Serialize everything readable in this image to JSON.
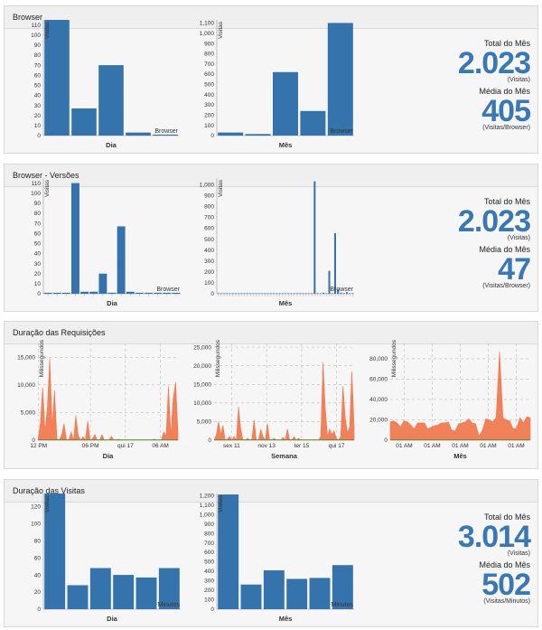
{
  "colors": {
    "bar": "#3573ad",
    "area": "#f07a50",
    "green": "#3a9a3a"
  },
  "panels": [
    {
      "title": "Browser",
      "stats": {
        "total_label": "Total do Mês",
        "total_value": "2.023",
        "total_unit": "(Visitas)",
        "avg_label": "Média do Mês",
        "avg_value": "405",
        "avg_unit": "(Visitas/Browser)"
      }
    },
    {
      "title": "Browser - Versões",
      "stats": {
        "total_label": "Total do Mês",
        "total_value": "2.023",
        "total_unit": "(Visitas)",
        "avg_label": "Média do Mês",
        "avg_value": "47",
        "avg_unit": "(Visitas/Browser)"
      }
    },
    {
      "title": "Duração das Requisições"
    },
    {
      "title": "Duração das Visitas",
      "stats": {
        "total_label": "Total do Mês",
        "total_value": "3.014",
        "total_unit": "(Visitas)",
        "avg_label": "Média do Mês",
        "avg_value": "502",
        "avg_unit": "(Visitas/Minutos)"
      }
    }
  ],
  "chart_data": [
    {
      "id": "browser-dia",
      "type": "bar",
      "ylabel": "Visitas",
      "xlabel": "Dia",
      "series_label": "Browser",
      "ylim": [
        0,
        115
      ],
      "yticks": [
        0,
        10,
        20,
        30,
        40,
        50,
        60,
        70,
        80,
        90,
        100,
        110
      ],
      "values": [
        115,
        27,
        70,
        3,
        1
      ]
    },
    {
      "id": "browser-mes",
      "type": "bar",
      "ylabel": "Visitas",
      "xlabel": "Mês",
      "series_label": "Browser",
      "ylim": [
        0,
        1130
      ],
      "yticks": [
        0,
        100,
        200,
        300,
        400,
        500,
        600,
        700,
        800,
        900,
        1000,
        1100
      ],
      "ytick_labels": [
        "0",
        "100",
        "200",
        "300",
        "400",
        "500",
        "600",
        "700",
        "800",
        "900",
        "1,000",
        "1,100"
      ],
      "values": [
        30,
        15,
        620,
        240,
        1100
      ]
    },
    {
      "id": "versoes-dia",
      "type": "bar",
      "ylabel": "Visitas",
      "xlabel": "Dia",
      "series_label": "Browser",
      "ylim": [
        0,
        115
      ],
      "yticks": [
        0,
        10,
        20,
        30,
        40,
        50,
        60,
        70,
        80,
        90,
        100,
        110
      ],
      "values": [
        1,
        1,
        1,
        110,
        2,
        2,
        20,
        1,
        67,
        2,
        1,
        1,
        1,
        1,
        1
      ]
    },
    {
      "id": "versoes-mes",
      "type": "bar",
      "ylabel": "Visitas",
      "xlabel": "Mês",
      "series_label": "Browser",
      "ylim": [
        0,
        1060
      ],
      "yticks": [
        0,
        100,
        200,
        300,
        400,
        500,
        600,
        700,
        800,
        900,
        1000
      ],
      "ytick_labels": [
        "0",
        "100",
        "200",
        "300",
        "400",
        "500",
        "600",
        "700",
        "800",
        "900",
        "1,000"
      ],
      "values": [
        2,
        1,
        2,
        1,
        1,
        1,
        2,
        1,
        1,
        1,
        2,
        1,
        1,
        1,
        1,
        1,
        1,
        1,
        1,
        1,
        1,
        2,
        1,
        1,
        1,
        1,
        1,
        1,
        1,
        1,
        1,
        1,
        2,
        1030,
        1,
        2,
        10,
        1,
        210,
        1,
        555,
        40,
        10,
        5,
        15,
        3,
        2
      ]
    },
    {
      "id": "req-dia",
      "type": "area",
      "ylabel": "Milissegundos",
      "xlabel": "Dia",
      "ylim": [
        0,
        17500
      ],
      "yticks": [
        0,
        5000,
        10000,
        15000
      ],
      "ytick_labels": [
        "0",
        "5,000",
        "10,000",
        "15,000"
      ],
      "xtick_labels": [
        "12 PM",
        "06 PM",
        "qui 17",
        "06 AM"
      ],
      "values": [
        0,
        3000,
        9500,
        1500,
        6000,
        14800,
        2500,
        9000,
        300,
        0,
        1000,
        3000,
        200,
        0,
        1500,
        0,
        4500,
        800,
        0,
        600,
        0,
        3500,
        0,
        300,
        1000,
        0,
        0,
        1000,
        0,
        0,
        0,
        700,
        0,
        0,
        200,
        0,
        0,
        0,
        0,
        0,
        0,
        0,
        0,
        0,
        0,
        0,
        0,
        0,
        0,
        200,
        0,
        0,
        0,
        1500,
        800,
        9800,
        1000,
        7500,
        10500,
        1500
      ]
    },
    {
      "id": "req-semana",
      "type": "area",
      "ylabel": "Milissegundos",
      "xlabel": "Semana",
      "ylim": [
        0,
        26000
      ],
      "yticks": [
        0,
        5000,
        10000,
        15000,
        20000,
        25000
      ],
      "ytick_labels": [
        "0",
        "5,000",
        "10,000",
        "15,000",
        "20,000",
        "25,000"
      ],
      "xtick_labels": [
        "sex 11",
        "nov 13",
        "ter 15",
        "qui 17"
      ],
      "values": [
        0,
        1500,
        5000,
        1500,
        4000,
        0,
        300,
        1000,
        0,
        1000,
        0,
        9000,
        3000,
        0,
        0,
        500,
        0,
        200,
        5500,
        0,
        0,
        3000,
        1000,
        0,
        4500,
        0,
        0,
        500,
        0,
        0,
        0,
        800,
        0,
        3000,
        0,
        0,
        1000,
        0,
        500,
        0,
        0,
        0,
        0,
        0,
        0,
        200,
        0,
        0,
        1000,
        21000,
        9000,
        1000,
        3000,
        1500,
        2500,
        500,
        0,
        1000,
        14500,
        6000,
        2000,
        3500,
        18500,
        4000
      ]
    },
    {
      "id": "req-mes",
      "type": "area",
      "ylabel": "Milissegundos",
      "xlabel": "Mês",
      "ylim": [
        0,
        95000
      ],
      "yticks": [
        0,
        20000,
        40000,
        60000,
        80000
      ],
      "ytick_labels": [
        "0",
        "20,000",
        "40,000",
        "60,000",
        "80,000"
      ],
      "xtick_labels": [
        "01 AM",
        "01 AM",
        "01 AM",
        "01 AM",
        "01 AM"
      ],
      "values": [
        18000,
        19000,
        17000,
        13000,
        19000,
        18000,
        15000,
        11000,
        17000,
        17000,
        17000,
        11000,
        13000,
        14000,
        15000,
        17000,
        17000,
        18000,
        10000,
        9000,
        16000,
        17000,
        18000,
        21000,
        17000,
        16000,
        4000,
        10000,
        21000,
        20000,
        18000,
        22000,
        87000,
        22000,
        20000,
        19000,
        11000,
        12000,
        22000,
        17000,
        23000,
        22000
      ]
    },
    {
      "id": "visitas-dia",
      "type": "bar",
      "ylabel": "Visitas",
      "xlabel": "Dia",
      "series_label": "Minutos",
      "ylim": [
        0,
        135
      ],
      "yticks": [
        0,
        20,
        40,
        60,
        80,
        100,
        120
      ],
      "values": [
        135,
        28,
        48,
        40,
        37,
        48
      ]
    },
    {
      "id": "visitas-mes",
      "type": "bar",
      "ylabel": "Visitas",
      "xlabel": "Mês",
      "series_label": "Minutos",
      "ylim": [
        0,
        1220
      ],
      "yticks": [
        0,
        100,
        200,
        300,
        400,
        500,
        600,
        700,
        800,
        900,
        1000,
        1100,
        1200
      ],
      "ytick_labels": [
        "0",
        "100",
        "200",
        "300",
        "400",
        "500",
        "600",
        "700",
        "800",
        "900",
        "1,000",
        "1,100",
        "1,200"
      ],
      "values": [
        1210,
        260,
        410,
        320,
        330,
        465
      ]
    }
  ]
}
